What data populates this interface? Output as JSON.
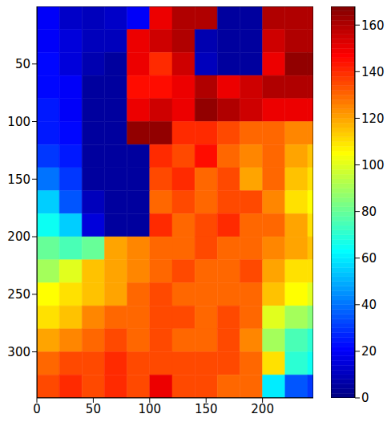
{
  "chart_data": {
    "type": "heatmap",
    "grid": false,
    "x_edges": [
      0,
      20,
      40,
      60,
      80,
      100,
      120,
      140,
      160,
      180,
      200,
      220,
      240,
      245
    ],
    "y_edges": [
      0,
      20,
      40,
      60,
      80,
      100,
      120,
      140,
      160,
      180,
      200,
      220,
      240,
      260,
      280,
      300,
      320,
      340
    ],
    "xlim": [
      0,
      245
    ],
    "ylim": [
      340,
      0
    ],
    "xticks": [
      0,
      50,
      100,
      150,
      200
    ],
    "yticks": [
      0,
      50,
      100,
      150,
      200,
      250,
      300
    ],
    "cells": [
      [
        20,
        12,
        10,
        12,
        20,
        150,
        160,
        160,
        5,
        5,
        160,
        160,
        160
      ],
      [
        20,
        15,
        10,
        10,
        150,
        155,
        160,
        8,
        5,
        5,
        155,
        160,
        160
      ],
      [
        22,
        15,
        8,
        5,
        150,
        140,
        155,
        10,
        5,
        5,
        150,
        165,
        165
      ],
      [
        22,
        20,
        5,
        5,
        145,
        145,
        150,
        160,
        150,
        155,
        160,
        160,
        160
      ],
      [
        25,
        20,
        5,
        5,
        150,
        155,
        150,
        165,
        160,
        155,
        150,
        150,
        150
      ],
      [
        25,
        22,
        5,
        5,
        165,
        165,
        140,
        140,
        135,
        130,
        130,
        125,
        125
      ],
      [
        30,
        25,
        5,
        5,
        5,
        140,
        135,
        145,
        130,
        125,
        130,
        120,
        115
      ],
      [
        40,
        30,
        5,
        5,
        5,
        135,
        140,
        130,
        135,
        120,
        130,
        115,
        110
      ],
      [
        55,
        35,
        10,
        5,
        5,
        130,
        135,
        130,
        135,
        135,
        125,
        110,
        105
      ],
      [
        65,
        55,
        15,
        5,
        5,
        140,
        130,
        135,
        140,
        130,
        130,
        120,
        110
      ],
      [
        80,
        75,
        80,
        120,
        125,
        130,
        130,
        135,
        130,
        130,
        125,
        120,
        115
      ],
      [
        90,
        100,
        115,
        120,
        125,
        130,
        135,
        130,
        130,
        135,
        120,
        110,
        110
      ],
      [
        105,
        110,
        115,
        120,
        130,
        135,
        130,
        130,
        130,
        130,
        115,
        105,
        100
      ],
      [
        110,
        115,
        125,
        130,
        130,
        135,
        135,
        130,
        135,
        130,
        100,
        90,
        85
      ],
      [
        120,
        125,
        130,
        135,
        130,
        135,
        130,
        130,
        135,
        125,
        90,
        75,
        70
      ],
      [
        130,
        135,
        135,
        140,
        135,
        135,
        135,
        135,
        135,
        130,
        110,
        70,
        65
      ],
      [
        135,
        140,
        135,
        140,
        135,
        150,
        135,
        135,
        130,
        130,
        60,
        35,
        30
      ]
    ],
    "colorbar_range": [
      0,
      168
    ],
    "colorbar_ticks": [
      0,
      20,
      40,
      60,
      80,
      100,
      120,
      140,
      160
    ]
  }
}
